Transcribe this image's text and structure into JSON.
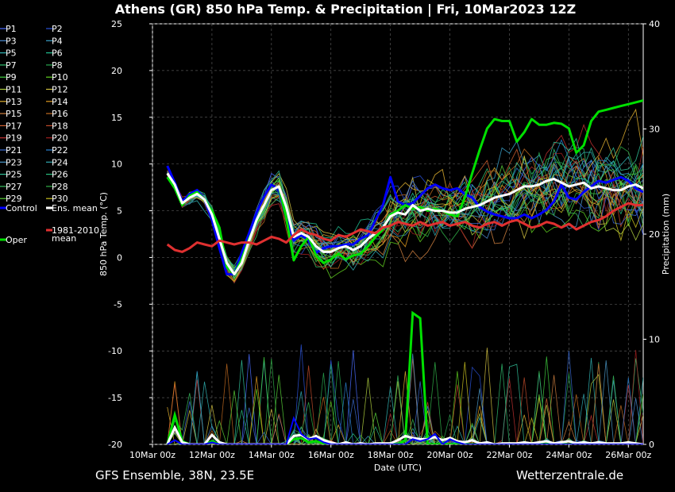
{
  "title": "Athens  (GR)  850 hPa Temp. & Precipitation | Fri, 10Mar2023 12Z",
  "footer": {
    "left": "GFS Ensemble, 38N, 23.5E",
    "right": "Wetterzentrale.de"
  },
  "legend": [
    {
      "label": "P1",
      "color": "#4a6cff"
    },
    {
      "label": "P2",
      "color": "#2a52d8"
    },
    {
      "label": "P3",
      "color": "#4a8ad0"
    },
    {
      "label": "P4",
      "color": "#3aa0c8"
    },
    {
      "label": "P5",
      "color": "#30b4b4"
    },
    {
      "label": "P6",
      "color": "#20c090"
    },
    {
      "label": "P7",
      "color": "#30c070"
    },
    {
      "label": "P8",
      "color": "#28a850"
    },
    {
      "label": "P9",
      "color": "#40d040"
    },
    {
      "label": "P10",
      "color": "#60d020"
    },
    {
      "label": "P11",
      "color": "#b0d040"
    },
    {
      "label": "P12",
      "color": "#d0c040"
    },
    {
      "label": "P13",
      "color": "#e0b030"
    },
    {
      "label": "P14",
      "color": "#e09a20"
    },
    {
      "label": "P15",
      "color": "#d08040"
    },
    {
      "label": "P16",
      "color": "#c06a20"
    },
    {
      "label": "P17",
      "color": "#d06030"
    },
    {
      "label": "P18",
      "color": "#c04a2a"
    },
    {
      "label": "P19",
      "color": "#c03030"
    },
    {
      "label": "P20",
      "color": "#a02020"
    },
    {
      "label": "P21",
      "color": "#3a6ad0"
    },
    {
      "label": "P22",
      "color": "#2a80d0"
    },
    {
      "label": "P23",
      "color": "#4a98c8"
    },
    {
      "label": "P24",
      "color": "#30a8b0"
    },
    {
      "label": "P25",
      "color": "#30c098"
    },
    {
      "label": "P26",
      "color": "#28c080"
    },
    {
      "label": "P27",
      "color": "#38c060"
    },
    {
      "label": "P28",
      "color": "#30b048"
    },
    {
      "label": "P29",
      "color": "#58d038"
    },
    {
      "label": "P30",
      "color": "#c8c020"
    },
    {
      "label": "Control",
      "color": "#0000ff"
    },
    {
      "label": "Ens. mean",
      "color": "#ffffff"
    },
    {
      "label": "1981-2010 mean",
      "color": "#e03030"
    },
    {
      "label": "Oper",
      "color": "#00e000"
    }
  ],
  "chart_data": {
    "type": "line",
    "title": "Athens  (GR)  850 hPa Temp. & Precipitation | Fri, 10Mar2023 12Z",
    "xlabel": "Date (UTC)",
    "ylabel": "850 hPa Temp. (°C)",
    "y2label": "Precipitation (mm)",
    "ylim": [
      -20,
      25
    ],
    "y2lim": [
      0,
      40
    ],
    "yticks": [
      -20,
      -15,
      -10,
      -5,
      0,
      5,
      10,
      15,
      20,
      25
    ],
    "y2ticks": [
      0,
      10,
      20,
      30,
      40
    ],
    "xlim": [
      0,
      16.5
    ],
    "xticks": [
      0,
      2,
      4,
      6,
      8,
      10,
      12,
      14,
      16
    ],
    "xticklabels": [
      "10Mar 00z",
      "12Mar 00z",
      "14Mar 00z",
      "16Mar 00z",
      "18Mar 00z",
      "20Mar 00z",
      "22Mar 00z",
      "24Mar 00z",
      "26Mar 00z"
    ],
    "grid": true,
    "legend_position": "left",
    "x_unit": "days after 10Mar 00z",
    "x": [
      0.5,
      0.75,
      1.0,
      1.25,
      1.5,
      1.75,
      2.0,
      2.25,
      2.5,
      2.75,
      3.0,
      3.25,
      3.5,
      3.75,
      4.0,
      4.25,
      4.5,
      4.75,
      5.0,
      5.25,
      5.5,
      5.75,
      6.0,
      6.25,
      6.5,
      6.75,
      7.0,
      7.25,
      7.5,
      7.75,
      8.0,
      8.25,
      8.5,
      8.75,
      9.0,
      9.25,
      9.5,
      9.75,
      10.0,
      10.25,
      10.5,
      10.75,
      11.0,
      11.25,
      11.5,
      11.75,
      12.0,
      12.25,
      12.5,
      12.75,
      13.0,
      13.25,
      13.5,
      13.75,
      14.0,
      14.25,
      14.5,
      14.75,
      15.0,
      15.25,
      15.5,
      15.75,
      16.0,
      16.25,
      16.5
    ],
    "highlight_series": [
      {
        "name": "Control",
        "color": "#0000ff",
        "width": 3,
        "values": [
          9.8,
          8,
          6,
          6.8,
          7.2,
          6.2,
          4,
          1,
          -1.8,
          -1.8,
          0.5,
          2.6,
          4.8,
          6.5,
          7.8,
          7.2,
          4.2,
          1.8,
          2.4,
          1.8,
          0.5,
          1,
          1.2,
          1.2,
          1.4,
          1.4,
          2,
          2.4,
          4,
          5.6,
          8.6,
          6,
          5.6,
          5.8,
          6.6,
          7.4,
          7.8,
          7.4,
          7.2,
          7.4,
          6.8,
          6.4,
          5.4,
          4.9,
          4.6,
          4.4,
          4.2,
          4.2,
          4.6,
          4.2,
          4.6,
          5.1,
          6,
          7.8,
          6.4,
          6.2,
          7,
          7.6,
          8.2,
          8,
          8.3,
          8.6,
          8.2,
          7.4,
          7
        ]
      },
      {
        "name": "Oper",
        "color": "#00e000",
        "width": 3,
        "values": [
          8.6,
          7.4,
          5.6,
          6.6,
          7,
          6.2,
          5,
          3.2,
          -1,
          -1.8,
          -0.2,
          2,
          3.8,
          5.6,
          7.2,
          7.6,
          4.2,
          -0.3,
          1.2,
          2.2,
          0.2,
          -0.6,
          -0.2,
          0.4,
          -0.2,
          0.2,
          0.4,
          1.2,
          2.2,
          3,
          4.6,
          5,
          5.6,
          5.2,
          5.4,
          5,
          5.2,
          5,
          4.6,
          4.4,
          6.4,
          9,
          11.5,
          13.8,
          14.8,
          14.6,
          14.6,
          12.4,
          13.4,
          14.8,
          14.2,
          14.2,
          14.4,
          14.3,
          13.8,
          11.2,
          12,
          14.6,
          15.6,
          15.8,
          16,
          16.2,
          16.4,
          16.6,
          16.8
        ]
      },
      {
        "name": "Ens. mean",
        "color": "#ffffff",
        "width": 3,
        "values": [
          9,
          7.8,
          5.8,
          6.4,
          6.8,
          6.2,
          4.6,
          2,
          -0.6,
          -1.8,
          -0.6,
          1.8,
          4,
          5.6,
          7.2,
          7.6,
          5.4,
          2.2,
          2.6,
          2.2,
          1.2,
          0.6,
          0.6,
          1,
          1.2,
          0.8,
          1.2,
          2,
          2.6,
          3.2,
          4.4,
          4.8,
          4.6,
          5.6,
          5,
          5.2,
          5,
          5,
          4.8,
          4.8,
          5.2,
          5.4,
          5.6,
          6,
          6.4,
          6.6,
          6.8,
          7.2,
          7.6,
          7.6,
          7.8,
          8.2,
          8.4,
          8,
          7.6,
          7.8,
          8,
          7.4,
          7.6,
          7.4,
          7.2,
          7.2,
          7.6,
          7.8,
          7.4
        ]
      },
      {
        "name": "1981-2010 mean",
        "color": "#e03030",
        "width": 3,
        "values": [
          1.4,
          0.8,
          0.6,
          1,
          1.6,
          1.4,
          1.2,
          1.8,
          1.6,
          1.4,
          1.6,
          1.6,
          1.4,
          1.8,
          2.2,
          2,
          1.6,
          2.4,
          3,
          2.6,
          2.4,
          2,
          1.8,
          2.4,
          2.2,
          2.6,
          3,
          2.8,
          2.6,
          3.2,
          3.4,
          3.8,
          3.6,
          3.4,
          3.8,
          3.4,
          3.6,
          3.8,
          3.4,
          3.6,
          3.8,
          3.4,
          3.2,
          3.6,
          3.8,
          3.4,
          3.8,
          4,
          3.6,
          3.2,
          3.4,
          3.8,
          3.6,
          3.2,
          3.6,
          3,
          3.4,
          3.8,
          4,
          4.4,
          5,
          5.4,
          5.8,
          5.6,
          5.6
        ]
      }
    ],
    "precip_highlight": [
      {
        "name": "Oper",
        "color": "#00e000",
        "width": 3,
        "values": [
          0,
          2.8,
          0.3,
          0,
          0,
          0,
          0.3,
          0,
          0,
          0,
          0,
          0,
          0,
          0,
          0,
          0,
          0,
          0.5,
          0.6,
          0.2,
          0.3,
          0.1,
          0,
          0,
          0,
          0,
          0,
          0,
          0,
          0,
          0,
          0,
          0.4,
          12.5,
          12,
          0,
          0,
          0,
          0,
          0,
          0,
          0,
          0,
          0,
          0,
          0,
          0,
          0,
          0,
          0,
          0,
          0,
          0,
          0,
          0,
          0,
          0,
          0,
          0,
          0,
          0,
          0,
          0,
          0,
          0
        ]
      },
      {
        "name": "Ens. mean",
        "color": "#ffffff",
        "width": 3,
        "values": [
          0,
          1.6,
          0.2,
          0,
          0,
          0,
          0.9,
          0.2,
          0,
          0,
          0,
          0,
          0,
          0,
          0,
          0,
          0,
          0.8,
          0.9,
          0.5,
          0.8,
          0.4,
          0.2,
          0,
          0.2,
          0,
          0.1,
          0,
          0.1,
          0.1,
          0.1,
          0.4,
          0.8,
          0.6,
          0.5,
          0.5,
          0.7,
          0.4,
          0.6,
          0.3,
          0.2,
          0.4,
          0.1,
          0.2,
          0,
          0.1,
          0.1,
          0.1,
          0.2,
          0.1,
          0.2,
          0.3,
          0.1,
          0.2,
          0.3,
          0.1,
          0.2,
          0.1,
          0.2,
          0.1,
          0.1,
          0.1,
          0.2,
          0.1,
          0
        ]
      },
      {
        "name": "Control",
        "color": "#0000ff",
        "width": 2,
        "values": [
          0,
          0.4,
          0,
          0,
          0,
          0,
          0.2,
          0,
          0,
          0,
          0,
          0,
          0,
          0,
          0,
          0,
          0,
          2.5,
          1,
          0.5,
          0.6,
          0.2,
          0,
          0,
          0,
          0,
          0,
          0,
          0,
          0,
          0,
          0,
          0,
          0.5,
          0.3,
          0.5,
          1,
          0,
          0.5,
          0.2,
          0,
          0,
          0,
          0,
          0,
          0,
          0,
          0,
          0,
          0,
          0,
          0,
          0,
          0,
          0,
          0,
          0,
          0,
          0,
          0,
          0,
          0,
          0,
          0,
          0
        ]
      }
    ]
  }
}
